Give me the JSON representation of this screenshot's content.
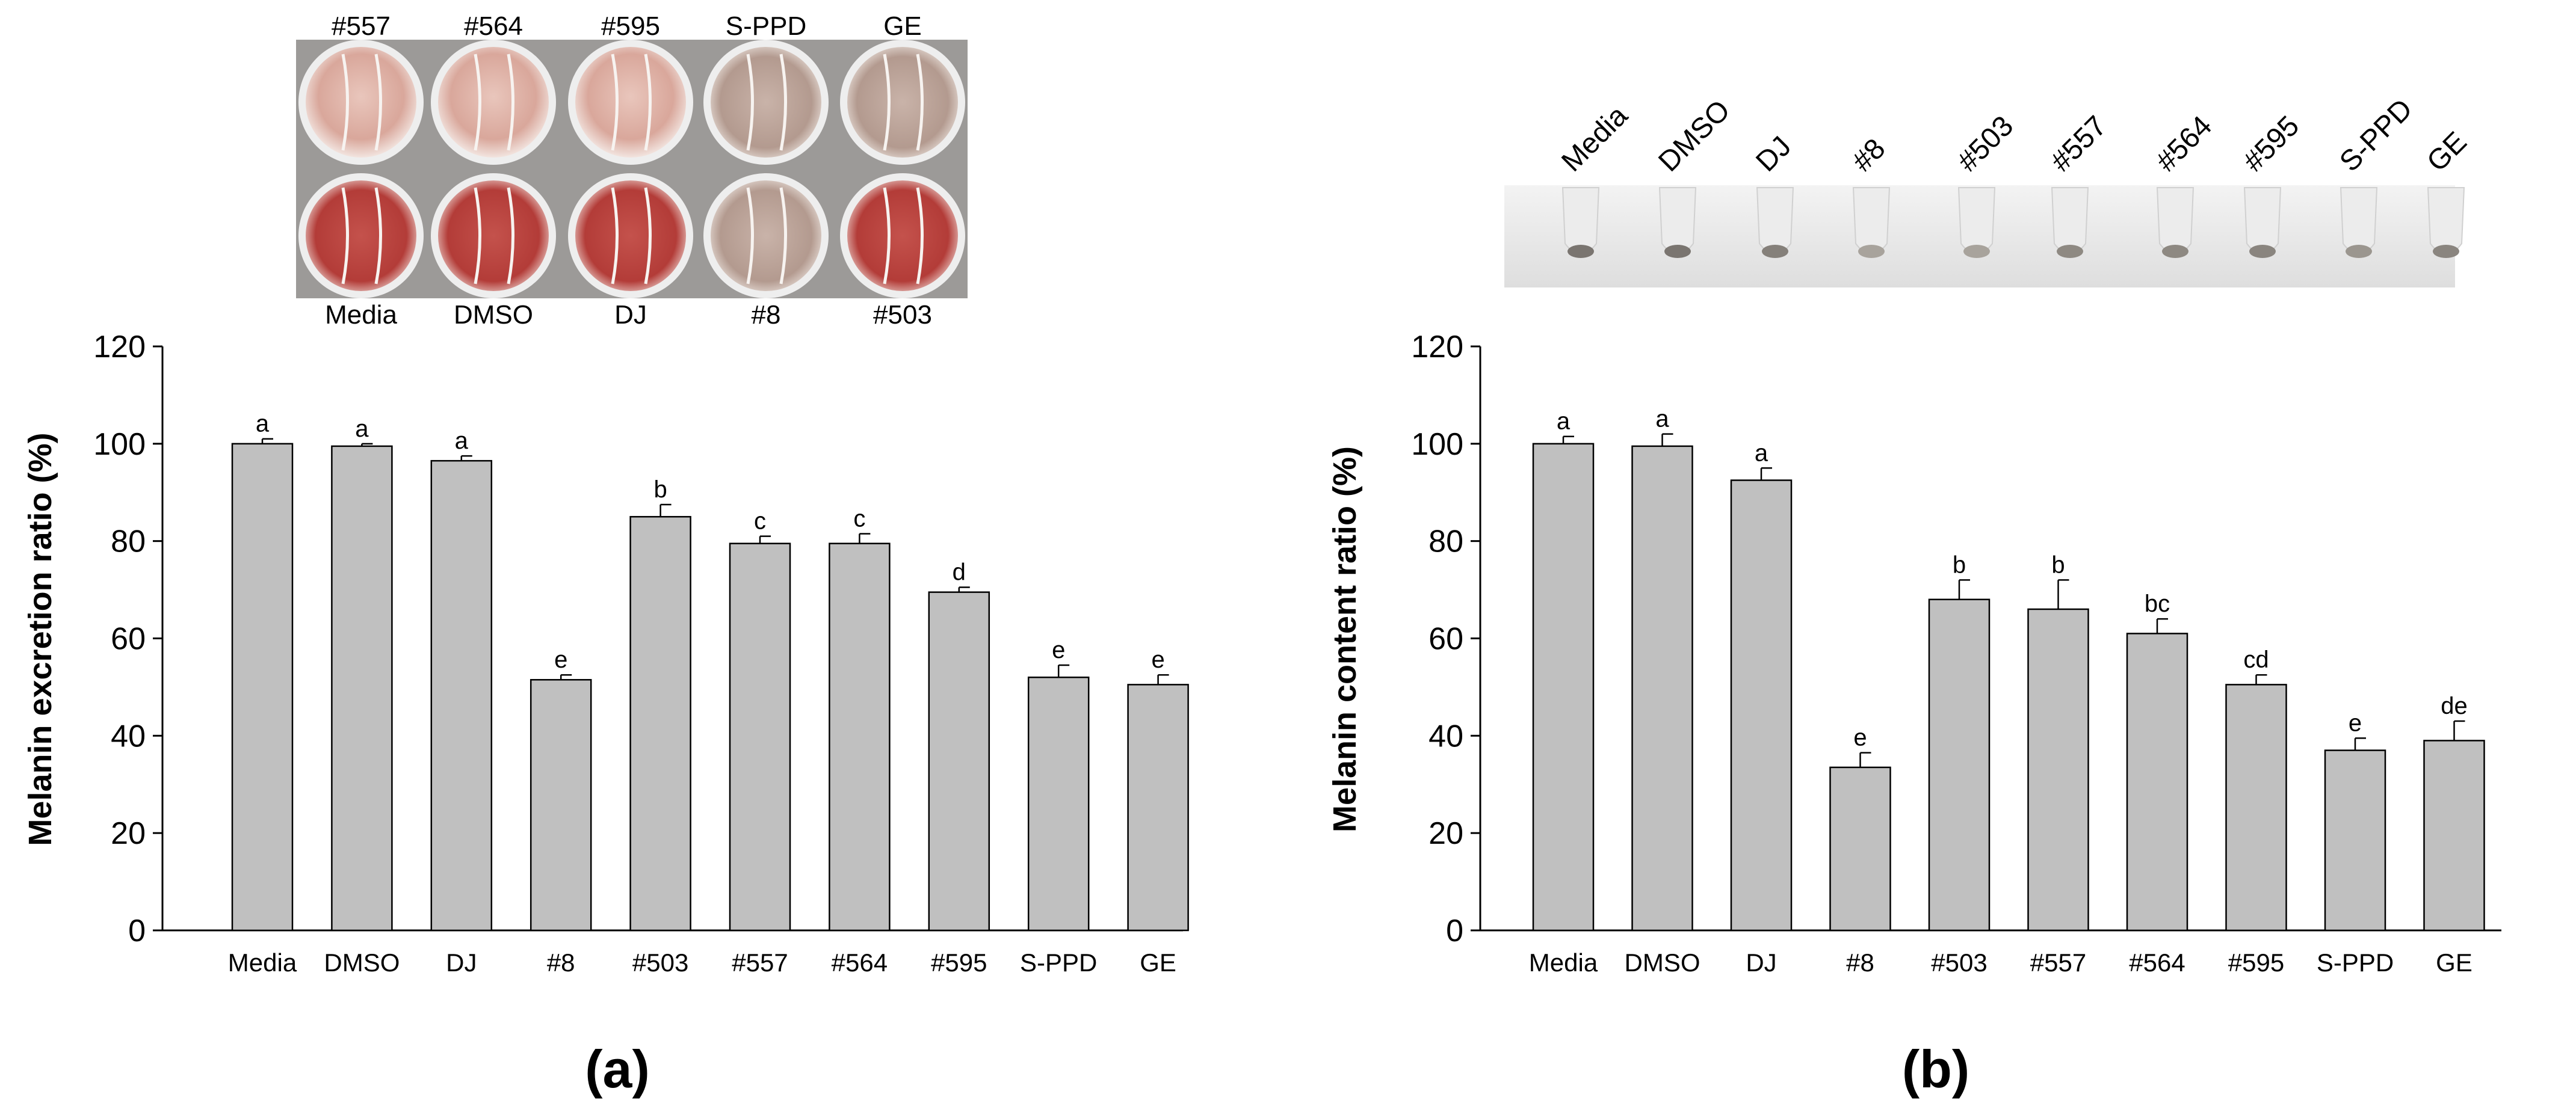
{
  "chart_data": [
    {
      "type": "bar",
      "panel": "(a)",
      "ylabel": "Melanin excretion ratio (%)",
      "xlabel": "",
      "ylim": [
        0,
        120
      ],
      "yticks": [
        "0",
        "20",
        "40",
        "60",
        "80",
        "100",
        "120"
      ],
      "categories": [
        "Media",
        "DMSO",
        "DJ",
        "#8",
        "#503",
        "#557",
        "#564",
        "#595",
        "S-PPD",
        "GE"
      ],
      "values": [
        100,
        99.5,
        96.5,
        51.5,
        85,
        79.5,
        79.5,
        69.5,
        52,
        50.5
      ],
      "errors": [
        1,
        0.5,
        1,
        1,
        2.5,
        1.5,
        2,
        1,
        2.5,
        2
      ],
      "letters": [
        "a",
        "a",
        "a",
        "e",
        "b",
        "c",
        "c",
        "d",
        "e",
        "e"
      ]
    },
    {
      "type": "bar",
      "panel": "(b)",
      "ylabel": "Melanin content ratio (%)",
      "xlabel": "",
      "ylim": [
        0,
        120
      ],
      "yticks": [
        "0",
        "20",
        "40",
        "60",
        "80",
        "100",
        "120"
      ],
      "categories": [
        "Media",
        "DMSO",
        "DJ",
        "#8",
        "#503",
        "#557",
        "#564",
        "#595",
        "S-PPD",
        "GE"
      ],
      "values": [
        100,
        99.5,
        92.5,
        33.5,
        68,
        66,
        61,
        50.5,
        37,
        39
      ],
      "errors": [
        1.5,
        2.5,
        2.5,
        3,
        4,
        6,
        3,
        2,
        2.5,
        4
      ],
      "letters": [
        "a",
        "a",
        "a",
        "e",
        "b",
        "b",
        "bc",
        "cd",
        "e",
        "de"
      ]
    }
  ],
  "photo_a": {
    "top_labels": [
      "#557",
      "#564",
      "#595",
      "S-PPD",
      "GE"
    ],
    "bottom_labels": [
      "Media",
      "DMSO",
      "DJ",
      "#8",
      "#503"
    ]
  },
  "photo_b": {
    "labels": [
      "Media",
      "DMSO",
      "DJ",
      "#8",
      "#503",
      "#557",
      "#564",
      "#595",
      "S-PPD",
      "GE"
    ]
  },
  "colors": {
    "bar": "#c0c0c0",
    "axis": "#000000"
  }
}
